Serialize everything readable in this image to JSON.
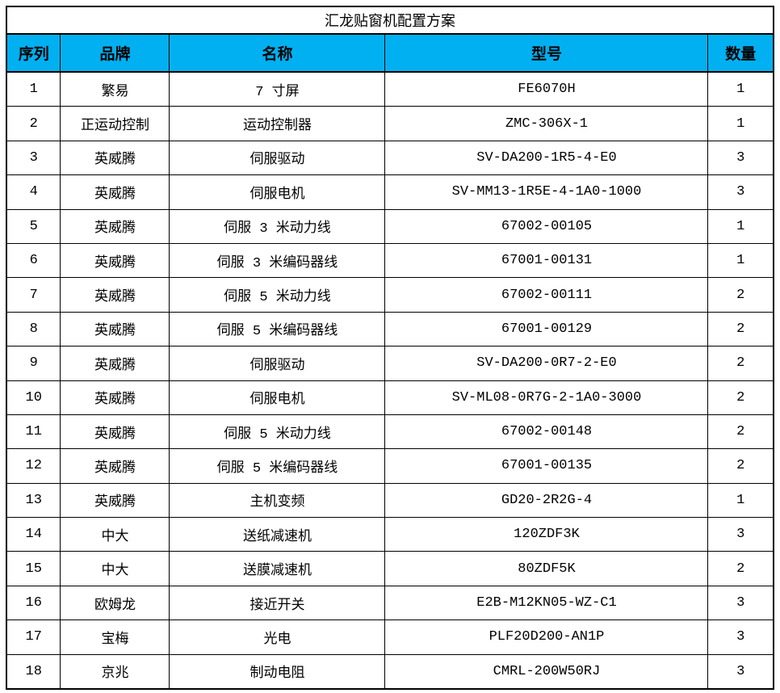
{
  "title": "汇龙贴窗机配置方案",
  "colors": {
    "header_bg": "#00B0F0",
    "border": "#000000",
    "background": "#FFFFFF"
  },
  "table": {
    "headers": [
      "序列",
      "品牌",
      "名称",
      "型号",
      "数量"
    ],
    "rows": [
      [
        "1",
        "繁易",
        "7 寸屏",
        "FE6070H",
        "1"
      ],
      [
        "2",
        "正运动控制",
        "运动控制器",
        "ZMC-306X-1",
        "1"
      ],
      [
        "3",
        "英威腾",
        "伺服驱动",
        "SV-DA200-1R5-4-E0",
        "3"
      ],
      [
        "4",
        "英威腾",
        "伺服电机",
        "SV-MM13-1R5E-4-1A0-1000",
        "3"
      ],
      [
        "5",
        "英威腾",
        "伺服 3 米动力线",
        "67002-00105",
        "1"
      ],
      [
        "6",
        "英威腾",
        "伺服 3 米编码器线",
        "67001-00131",
        "1"
      ],
      [
        "7",
        "英威腾",
        "伺服 5 米动力线",
        "67002-00111",
        "2"
      ],
      [
        "8",
        "英威腾",
        "伺服 5 米编码器线",
        "67001-00129",
        "2"
      ],
      [
        "9",
        "英威腾",
        "伺服驱动",
        "SV-DA200-0R7-2-E0",
        "2"
      ],
      [
        "10",
        "英威腾",
        "伺服电机",
        "SV-ML08-0R7G-2-1A0-3000",
        "2"
      ],
      [
        "11",
        "英威腾",
        "伺服 5 米动力线",
        "67002-00148",
        "2"
      ],
      [
        "12",
        "英威腾",
        "伺服 5 米编码器线",
        "67001-00135",
        "2"
      ],
      [
        "13",
        "英威腾",
        "主机变频",
        "GD20-2R2G-4",
        "1"
      ],
      [
        "14",
        "中大",
        "送纸减速机",
        "120ZDF3K",
        "3"
      ],
      [
        "15",
        "中大",
        "送膜减速机",
        "80ZDF5K",
        "2"
      ],
      [
        "16",
        "欧姆龙",
        "接近开关",
        "E2B-M12KN05-WZ-C1",
        "3"
      ],
      [
        "17",
        "宝梅",
        "光电",
        "PLF20D200-AN1P",
        "3"
      ],
      [
        "18",
        "京兆",
        "制动电阻",
        "CMRL-200W50RJ",
        "3"
      ]
    ]
  }
}
